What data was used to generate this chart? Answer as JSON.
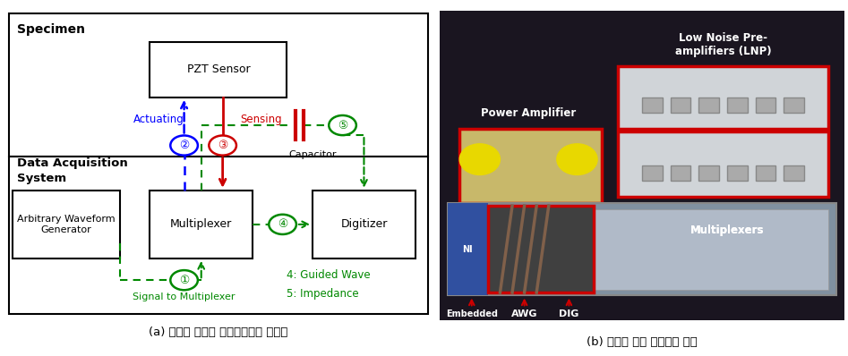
{
  "fig_width": 9.47,
  "fig_height": 3.98,
  "bg_color": "#ffffff",
  "left_panel": {
    "specimen_label": "Specimen",
    "das_label": "Data Acquisition\nSystem",
    "pzt_label": "PZT Sensor",
    "awg_label": "Arbitrary Waveform\nGenerator",
    "mux_label": "Multiplexer",
    "dig_label": "Digitizer",
    "actuating_label": "Actuating",
    "sensing_label": "Sensing",
    "signal_label": "Signal to Multiplexer",
    "capacitor_label": "Capacitor",
    "guided_wave_label": "4: Guided Wave",
    "impedance_label": "5: Impedance",
    "caption": "(a) 다채널 시스템 인터페이스의 개념도",
    "blue_color": "#0000ff",
    "red_color": "#cc0000",
    "green_color": "#008800"
  },
  "right_panel": {
    "caption": "(b) 데이터 취득 시스템의 구성",
    "lnp_label": "Low Noise Pre-\namplifiers (LNP)",
    "pa_label": "Power Amplifier",
    "mux_label": "Multiplexers",
    "ec_label": "Embedded\nController",
    "awg_label": "AWG",
    "dig_label": "DIG",
    "red_color": "#cc0000",
    "white_color": "#ffffff",
    "bg_dark": "#1a1a2a",
    "bg_mid": "#2a2a3a"
  }
}
